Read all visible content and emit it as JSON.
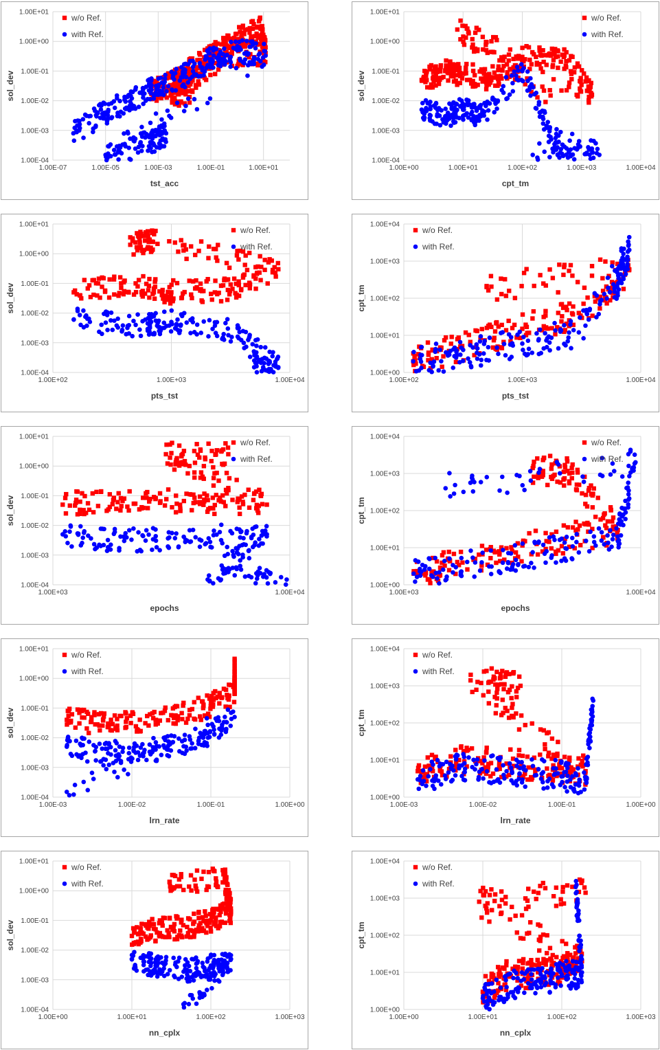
{
  "colors": {
    "wo_ref": "#ff0000",
    "with_ref": "#0000ff",
    "grid": "#d9d9d9",
    "text": "#404040"
  },
  "chart_data": [
    {
      "type": "scatter",
      "xlabel": "tst_acc",
      "ylabel": "sol_dev",
      "xscale": "log",
      "yscale": "log",
      "xlim": [
        1e-07,
        100.0
      ],
      "ylim": [
        0.0001,
        10
      ],
      "xticks": [
        "1.00E-07",
        "1.00E-05",
        "1.00E-03",
        "1.00E-01",
        "1.00E+01"
      ],
      "yticks": [
        "1.00E-04",
        "1.00E-03",
        "1.00E-02",
        "1.00E-01",
        "1.00E+00",
        "1.00E+01"
      ],
      "legend_position": "top-left",
      "series": [
        {
          "name": "w/o Ref.",
          "marker": "square",
          "points": [
            [
              0.0005,
              0.02
            ],
            [
              0.002,
              0.03
            ],
            [
              0.01,
              0.08
            ],
            [
              0.05,
              0.2
            ],
            [
              0.2,
              0.5
            ],
            [
              1,
              1.2
            ],
            [
              8,
              2.7
            ],
            [
              12,
              0.4
            ],
            [
              0.5,
              0.35
            ],
            [
              0.003,
              0.015
            ],
            [
              0.02,
              0.02
            ]
          ]
        },
        {
          "name": "with Ref.",
          "marker": "circle",
          "points": [
            [
              6e-07,
              0.0008
            ],
            [
              1e-05,
              0.004
            ],
            [
              0.0001,
              0.012
            ],
            [
              0.001,
              0.03
            ],
            [
              0.01,
              0.07
            ],
            [
              0.1,
              0.25
            ],
            [
              1,
              0.5
            ],
            [
              12,
              0.33
            ],
            [
              1e-05,
              0.00015
            ],
            [
              0.0005,
              0.0004
            ],
            [
              0.002,
              0.0008
            ]
          ]
        }
      ]
    },
    {
      "type": "scatter",
      "xlabel": "cpt_tm",
      "ylabel": "sol_dev",
      "xscale": "log",
      "yscale": "log",
      "xlim": [
        1,
        10000.0
      ],
      "ylim": [
        0.0001,
        10
      ],
      "xticks": [
        "1.00E+00",
        "1.00E+01",
        "1.00E+02",
        "1.00E+03",
        "1.00E+04"
      ],
      "yticks": [
        "1.00E-04",
        "1.00E-03",
        "1.00E-02",
        "1.00E-01",
        "1.00E+00",
        "1.00E+01"
      ],
      "legend_position": "top-right",
      "series": [
        {
          "name": "w/o Ref.",
          "marker": "square",
          "points": [
            [
              2,
              0.05
            ],
            [
              5,
              0.1
            ],
            [
              10,
              0.08
            ],
            [
              30,
              0.05
            ],
            [
              100,
              0.3
            ],
            [
              500,
              0.3
            ],
            [
              1500,
              0.016
            ],
            [
              8,
              2.5
            ],
            [
              300,
              0.015
            ]
          ]
        },
        {
          "name": "with Ref.",
          "marker": "circle",
          "points": [
            [
              2,
              0.005
            ],
            [
              5,
              0.003
            ],
            [
              10,
              0.005
            ],
            [
              20,
              0.003
            ],
            [
              100,
              0.1
            ],
            [
              300,
              0.0006
            ],
            [
              2000,
              0.00015
            ],
            [
              150,
              0.00015
            ]
          ]
        }
      ]
    },
    {
      "type": "scatter",
      "xlabel": "pts_tst",
      "ylabel": "sol_dev",
      "xscale": "log",
      "yscale": "log",
      "xlim": [
        100,
        10000.0
      ],
      "ylim": [
        0.0001,
        10
      ],
      "xticks": [
        "1.00E+02",
        "1.00E+03",
        "1.00E+04"
      ],
      "yticks": [
        "1.00E-04",
        "1.00E-03",
        "1.00E-02",
        "1.00E-01",
        "1.00E+00",
        "1.00E+01"
      ],
      "legend_position": "top-right",
      "series": [
        {
          "name": "w/o Ref.",
          "marker": "square",
          "points": [
            [
              150,
              0.05
            ],
            [
              500,
              0.1
            ],
            [
              1000,
              0.05
            ],
            [
              3000,
              0.06
            ],
            [
              8000,
              0.3
            ],
            [
              700,
              2.5
            ],
            [
              450,
              2
            ]
          ]
        },
        {
          "name": "with Ref.",
          "marker": "circle",
          "points": [
            [
              150,
              0.006
            ],
            [
              500,
              0.004
            ],
            [
              1000,
              0.005
            ],
            [
              3000,
              0.003
            ],
            [
              8000,
              0.00015
            ],
            [
              5000,
              0.00015
            ]
          ]
        }
      ]
    },
    {
      "type": "scatter",
      "xlabel": "pts_tst",
      "ylabel": "cpt_tm",
      "xscale": "log",
      "yscale": "log",
      "xlim": [
        100,
        10000.0
      ],
      "ylim": [
        1,
        10000.0
      ],
      "xticks": [
        "1.00E+02",
        "1.00E+03",
        "1.00E+04"
      ],
      "yticks": [
        "1.00E+00",
        "1.00E+01",
        "1.00E+02",
        "1.00E+03",
        "1.00E+04"
      ],
      "legend_position": "top-left",
      "series": [
        {
          "name": "w/o Ref.",
          "marker": "square",
          "points": [
            [
              120,
              2
            ],
            [
              300,
              5
            ],
            [
              1000,
              15
            ],
            [
              3000,
              40
            ],
            [
              8000,
              600
            ],
            [
              500,
              200
            ]
          ]
        },
        {
          "name": "with Ref.",
          "marker": "circle",
          "points": [
            [
              120,
              2
            ],
            [
              300,
              3
            ],
            [
              1000,
              6
            ],
            [
              3000,
              12
            ],
            [
              8000,
              2000
            ],
            [
              6000,
              150
            ]
          ]
        }
      ]
    },
    {
      "type": "scatter",
      "xlabel": "epochs",
      "ylabel": "sol_dev",
      "xscale": "log",
      "yscale": "log",
      "xlim": [
        1000,
        10000.0
      ],
      "ylim": [
        0.0001,
        10
      ],
      "xticks": [
        "1.00E+03",
        "1.00E+04"
      ],
      "yticks": [
        "1.00E-04",
        "1.00E-03",
        "1.00E-02",
        "1.00E-01",
        "1.00E+00",
        "1.00E+01"
      ],
      "legend_position": "top-right",
      "series": [
        {
          "name": "w/o Ref.",
          "marker": "square",
          "points": [
            [
              1100,
              0.05
            ],
            [
              2000,
              0.08
            ],
            [
              4000,
              0.06
            ],
            [
              8000,
              0.05
            ],
            [
              3000,
              2.5
            ],
            [
              5500,
              2.5
            ]
          ]
        },
        {
          "name": "with Ref.",
          "marker": "circle",
          "points": [
            [
              1100,
              0.005
            ],
            [
              2000,
              0.003
            ],
            [
              4000,
              0.004
            ],
            [
              8000,
              0.005
            ],
            [
              4500,
              0.00015
            ],
            [
              9700,
              0.00015
            ]
          ]
        }
      ]
    },
    {
      "type": "scatter",
      "xlabel": "epochs",
      "ylabel": "cpt_tm",
      "xscale": "log",
      "yscale": "log",
      "xlim": [
        1000,
        10000.0
      ],
      "ylim": [
        1,
        10000.0
      ],
      "xticks": [
        "1.00E+03",
        "1.00E+04"
      ],
      "yticks": [
        "1.00E+00",
        "1.00E+01",
        "1.00E+02",
        "1.00E+03",
        "1.00E+04"
      ],
      "legend_position": "top-right",
      "series": [
        {
          "name": "w/o Ref.",
          "marker": "square",
          "points": [
            [
              1100,
              2
            ],
            [
              2000,
              5
            ],
            [
              4000,
              15
            ],
            [
              8000,
              30
            ],
            [
              5000,
              1000
            ],
            [
              3500,
              1400
            ]
          ]
        },
        {
          "name": "with Ref.",
          "marker": "circle",
          "points": [
            [
              1100,
              2
            ],
            [
              2000,
              4
            ],
            [
              4000,
              8
            ],
            [
              8000,
              20
            ],
            [
              9500,
              2000
            ],
            [
              1500,
              400
            ]
          ]
        }
      ]
    },
    {
      "type": "scatter",
      "xlabel": "lrn_rate",
      "ylabel": "sol_dev",
      "xscale": "log",
      "yscale": "log",
      "xlim": [
        0.001,
        1
      ],
      "ylim": [
        0.0001,
        10
      ],
      "xticks": [
        "1.00E-03",
        "1.00E-02",
        "1.00E-01",
        "1.00E+00"
      ],
      "yticks": [
        "1.00E-04",
        "1.00E-03",
        "1.00E-02",
        "1.00E-01",
        "1.00E+00",
        "1.00E+01"
      ],
      "legend_position": "top-left",
      "series": [
        {
          "name": "w/o Ref.",
          "marker": "square",
          "points": [
            [
              0.0015,
              0.04
            ],
            [
              0.005,
              0.03
            ],
            [
              0.02,
              0.04
            ],
            [
              0.08,
              0.1
            ],
            [
              0.2,
              0.3
            ],
            [
              0.2,
              2.5
            ]
          ]
        },
        {
          "name": "with Ref.",
          "marker": "circle",
          "points": [
            [
              0.0015,
              0.005
            ],
            [
              0.005,
              0.003
            ],
            [
              0.02,
              0.004
            ],
            [
              0.08,
              0.01
            ],
            [
              0.2,
              0.05
            ],
            [
              0.0015,
              0.00015
            ]
          ]
        }
      ]
    },
    {
      "type": "scatter",
      "xlabel": "lrn_rate",
      "ylabel": "cpt_tm",
      "xscale": "log",
      "yscale": "log",
      "xlim": [
        0.001,
        1
      ],
      "ylim": [
        1,
        10000.0
      ],
      "xticks": [
        "1.00E-03",
        "1.00E-02",
        "1.00E-01",
        "1.00E+00"
      ],
      "yticks": [
        "1.00E+00",
        "1.00E+01",
        "1.00E+02",
        "1.00E+03",
        "1.00E+04"
      ],
      "legend_position": "top-left",
      "series": [
        {
          "name": "w/o Ref.",
          "marker": "square",
          "points": [
            [
              0.0015,
              5
            ],
            [
              0.005,
              10
            ],
            [
              0.02,
              8
            ],
            [
              0.08,
              6
            ],
            [
              0.2,
              5
            ],
            [
              0.007,
              1400
            ],
            [
              0.03,
              1000
            ]
          ]
        },
        {
          "name": "with Ref.",
          "marker": "circle",
          "points": [
            [
              0.0015,
              3
            ],
            [
              0.005,
              6
            ],
            [
              0.02,
              5
            ],
            [
              0.08,
              4
            ],
            [
              0.2,
              3
            ],
            [
              0.25,
              400
            ]
          ]
        }
      ]
    },
    {
      "type": "scatter",
      "xlabel": "nn_cplx",
      "ylabel": "sol_dev",
      "xscale": "log",
      "yscale": "log",
      "xlim": [
        1,
        1000
      ],
      "ylim": [
        0.0001,
        10
      ],
      "xticks": [
        "1.00E+00",
        "1.00E+01",
        "1.00E+02",
        "1.00E+03"
      ],
      "yticks": [
        "1.00E-04",
        "1.00E-03",
        "1.00E-02",
        "1.00E-01",
        "1.00E+00",
        "1.00E+01"
      ],
      "legend_position": "top-left",
      "series": [
        {
          "name": "w/o Ref.",
          "marker": "square",
          "points": [
            [
              10,
              0.03
            ],
            [
              20,
              0.05
            ],
            [
              50,
              0.06
            ],
            [
              100,
              0.1
            ],
            [
              180,
              0.2
            ],
            [
              150,
              2.5
            ],
            [
              30,
              2
            ]
          ]
        },
        {
          "name": "with Ref.",
          "marker": "circle",
          "points": [
            [
              10,
              0.005
            ],
            [
              20,
              0.003
            ],
            [
              50,
              0.002
            ],
            [
              100,
              0.003
            ],
            [
              180,
              0.005
            ],
            [
              45,
              0.00015
            ]
          ]
        }
      ]
    },
    {
      "type": "scatter",
      "xlabel": "nn_cplx",
      "ylabel": "cpt_tm",
      "xscale": "log",
      "yscale": "log",
      "xlim": [
        1,
        1000
      ],
      "ylim": [
        1,
        10000.0
      ],
      "xticks": [
        "1.00E+00",
        "1.00E+01",
        "1.00E+02",
        "1.00E+03"
      ],
      "yticks": [
        "1.00E+00",
        "1.00E+01",
        "1.00E+02",
        "1.00E+03",
        "1.00E+04"
      ],
      "legend_position": "top-left",
      "series": [
        {
          "name": "w/o Ref.",
          "marker": "square",
          "points": [
            [
              10,
              3
            ],
            [
              20,
              8
            ],
            [
              50,
              10
            ],
            [
              100,
              12
            ],
            [
              180,
              20
            ],
            [
              9,
              800
            ],
            [
              200,
              1400
            ]
          ]
        },
        {
          "name": "with Ref.",
          "marker": "circle",
          "points": [
            [
              10,
              2
            ],
            [
              20,
              4
            ],
            [
              50,
              6
            ],
            [
              100,
              8
            ],
            [
              180,
              10
            ],
            [
              150,
              2000
            ]
          ]
        }
      ]
    }
  ]
}
